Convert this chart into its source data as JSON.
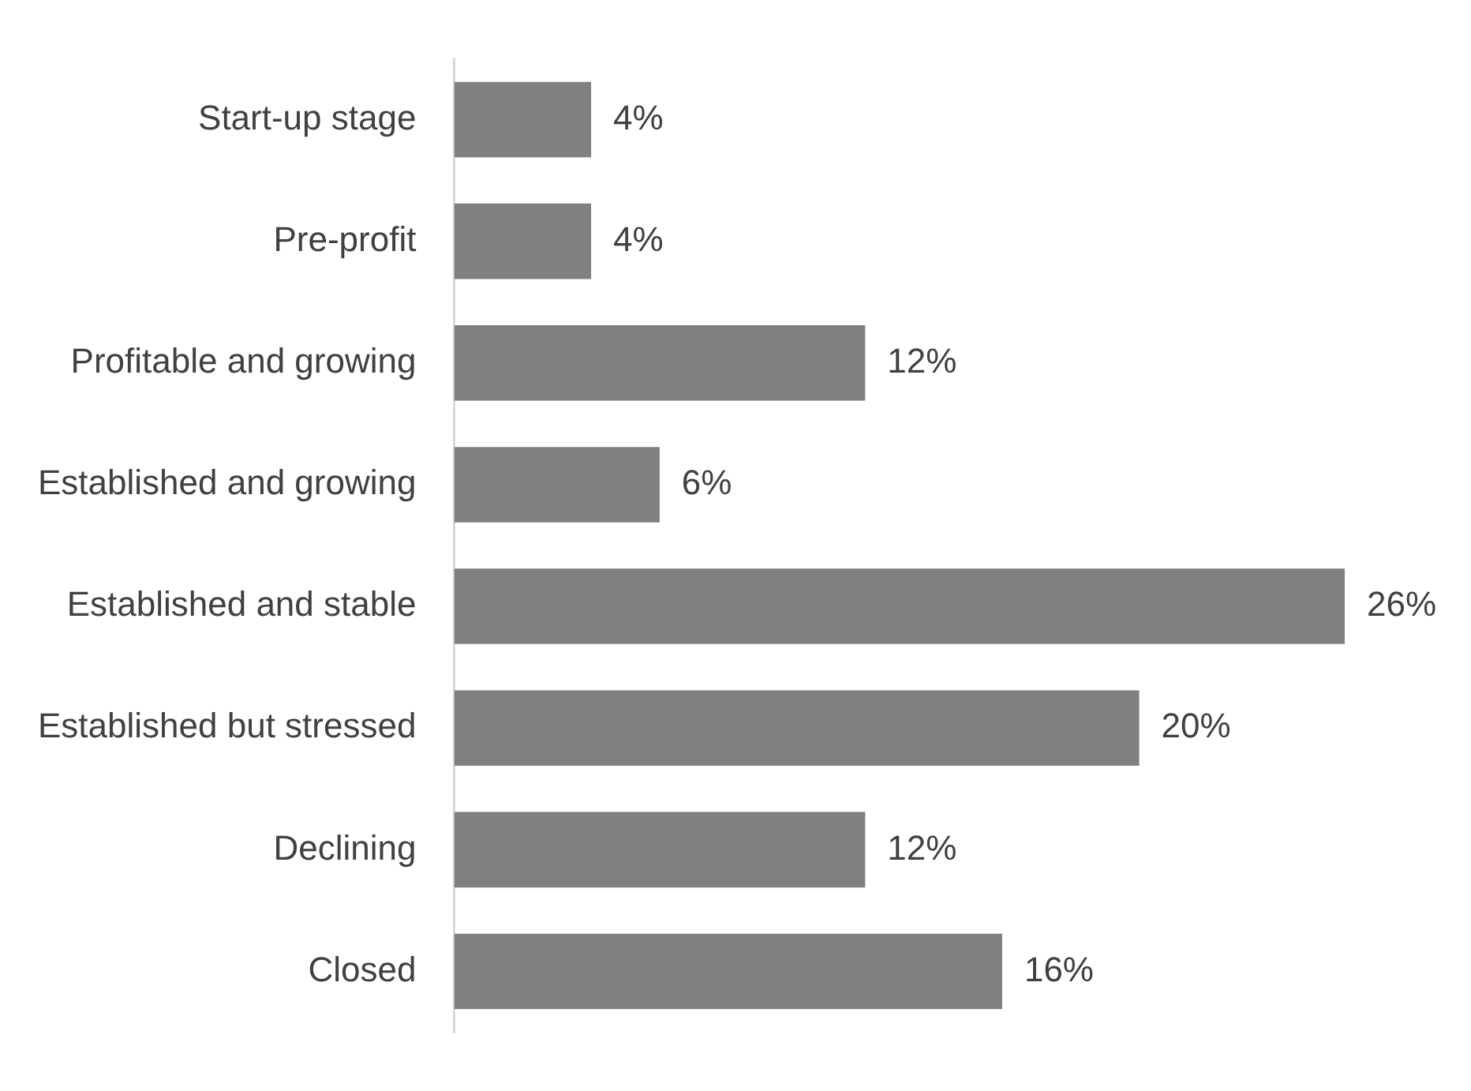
{
  "chart_data": {
    "type": "bar",
    "orientation": "horizontal",
    "categories": [
      "Start-up stage",
      "Pre-profit",
      "Profitable and growing",
      "Established and growing",
      "Established and stable",
      "Established but stressed",
      "Declining",
      "Closed"
    ],
    "values": [
      4,
      4,
      12,
      6,
      26,
      20,
      12,
      16
    ],
    "value_labels": [
      "4%",
      "4%",
      "12%",
      "6%",
      "26%",
      "20%",
      "12%",
      "16%"
    ],
    "color": "#808080"
  }
}
